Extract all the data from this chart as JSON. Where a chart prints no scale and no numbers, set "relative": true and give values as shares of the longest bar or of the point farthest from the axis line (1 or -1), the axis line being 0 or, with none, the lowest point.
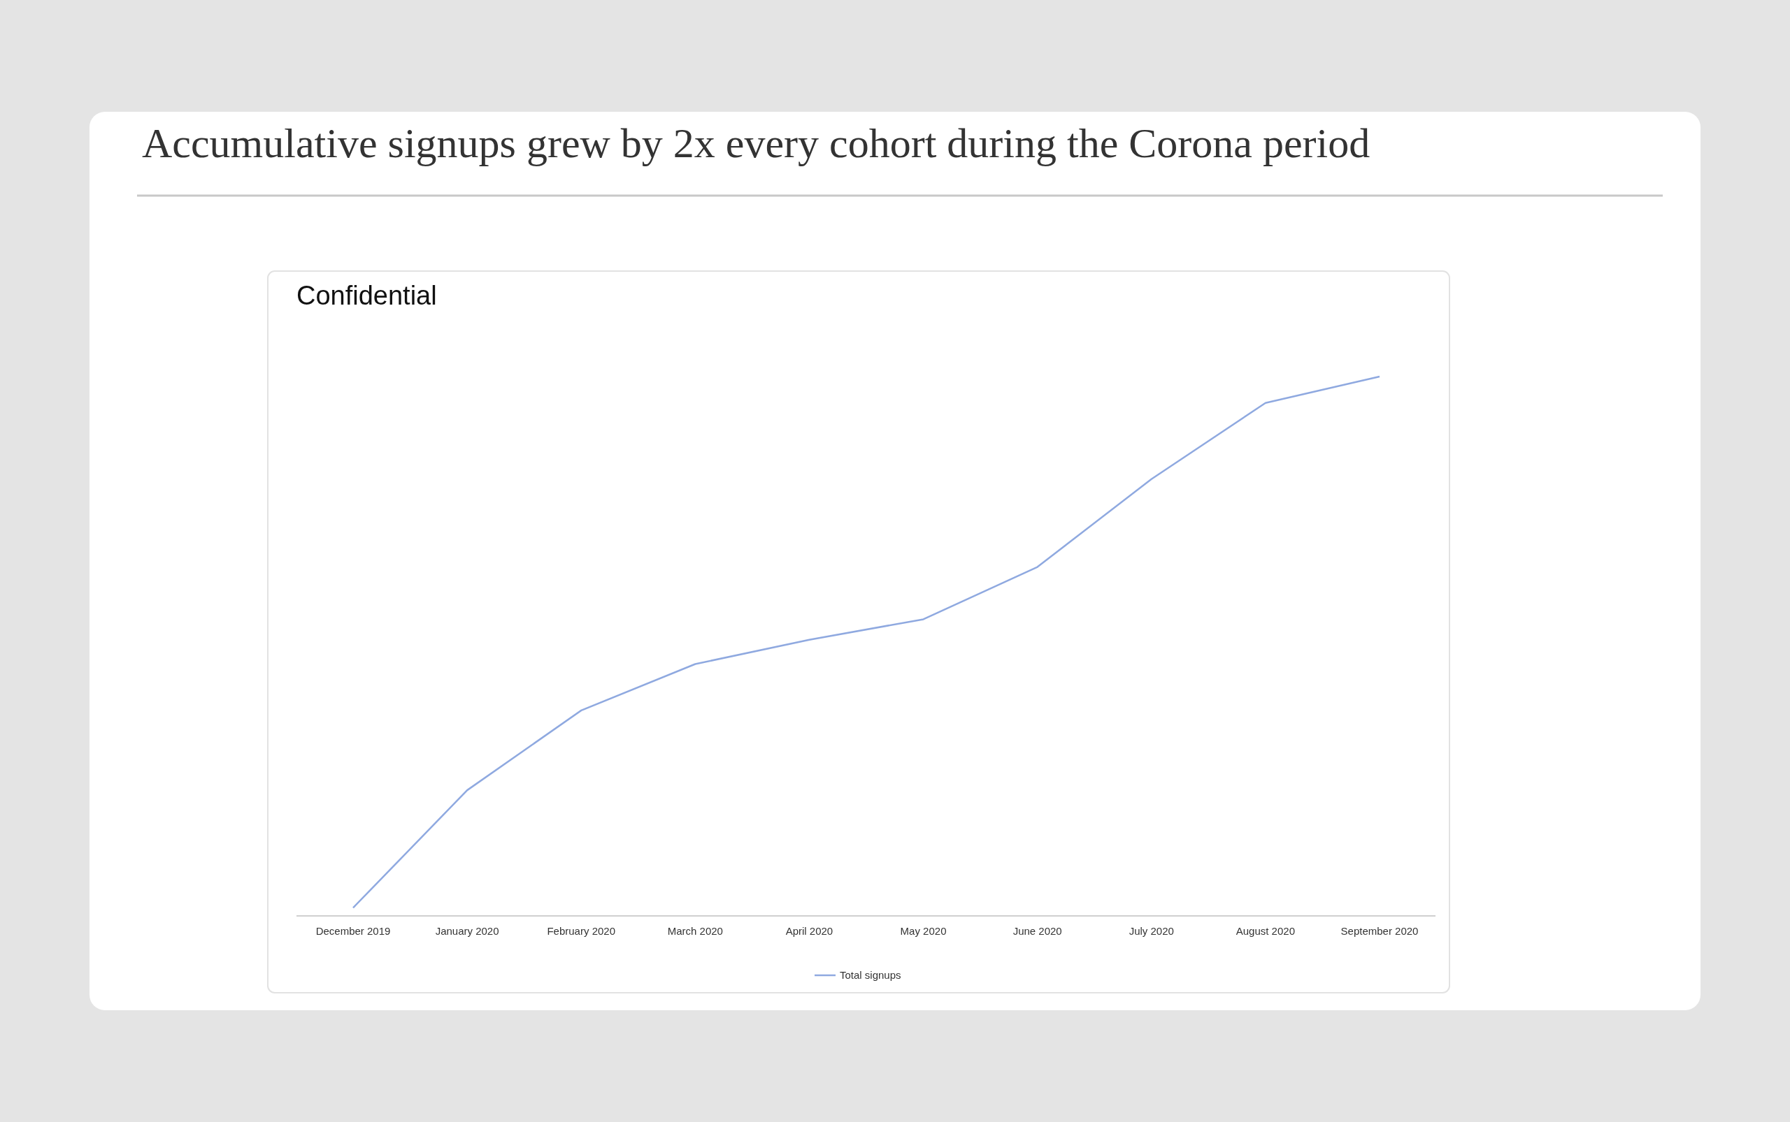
{
  "chart_data": {
    "type": "line",
    "title": "Accumulative signups grew by 2x every cohort during the Corona period",
    "subtitle": "Confidential",
    "relative": true,
    "categories": [
      "December 2019",
      "January 2020",
      "February 2020",
      "March 2020",
      "April 2020",
      "May 2020",
      "June 2020",
      "July 2020",
      "August 2020",
      "September 2020"
    ],
    "series": [
      {
        "name": "Total signups",
        "color": "#8fa9e0",
        "values": [
          0.015,
          0.233,
          0.381,
          0.467,
          0.512,
          0.55,
          0.647,
          0.81,
          0.951,
          1
        ]
      }
    ],
    "legend": "bottom",
    "grid": false
  }
}
